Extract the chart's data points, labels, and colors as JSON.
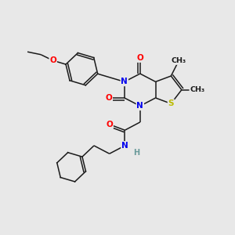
{
  "bg_color": "#e8e8e8",
  "bond_color": "#1a1a1a",
  "atom_colors": {
    "N": "#0000ee",
    "O": "#ff0000",
    "S": "#bbbb00",
    "H": "#6a9a9a",
    "C": "#1a1a1a"
  }
}
